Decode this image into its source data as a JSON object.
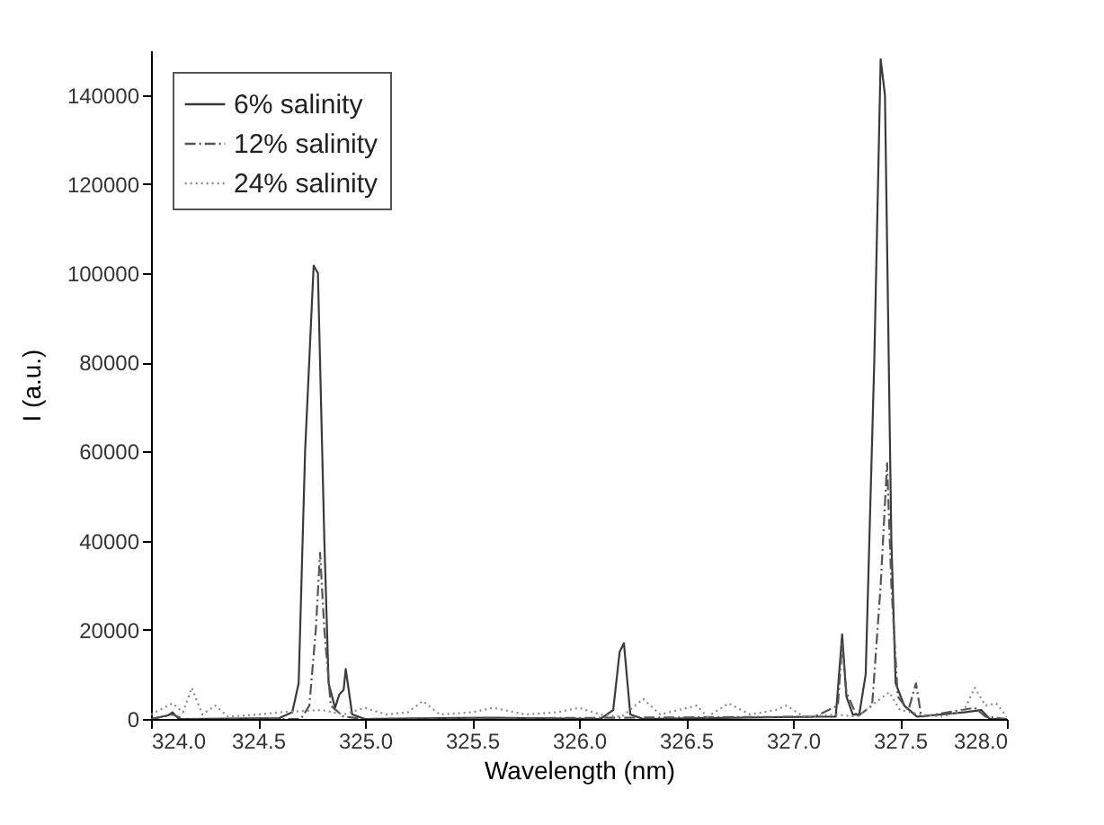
{
  "chart_data": {
    "type": "line",
    "xlabel": "Wavelength (nm)",
    "ylabel": "I (a.u.)",
    "xlim": [
      324.0,
      328.0
    ],
    "ylim": [
      0,
      150000
    ],
    "xticks": [
      {
        "value": 324,
        "label": "324.0"
      },
      {
        "value": 324.5,
        "label": "324.5"
      },
      {
        "value": 325,
        "label": "325.0"
      },
      {
        "value": 325.5,
        "label": "325.5"
      },
      {
        "value": 326,
        "label": "326.0"
      },
      {
        "value": 326.5,
        "label": "326.5"
      },
      {
        "value": 327,
        "label": "327.0"
      },
      {
        "value": 327.5,
        "label": "327.5"
      },
      {
        "value": 328,
        "label": "328.0"
      }
    ],
    "yticks": [
      0,
      20000,
      40000,
      60000,
      80000,
      100000,
      120000,
      140000
    ],
    "grid": false,
    "legend": "top left",
    "marker": "none",
    "series": [
      {
        "name": "6% salinity",
        "color": "#3a3a3a",
        "line_style": "solid",
        "x": [
          324.0,
          324.08,
          324.1,
          324.13,
          324.6,
          324.66,
          324.69,
          324.72,
          324.76,
          324.78,
          324.81,
          324.83,
          324.86,
          324.88,
          324.9,
          324.91,
          324.94,
          325.0,
          325.6,
          326.1,
          326.16,
          326.19,
          326.21,
          326.24,
          326.3,
          327.1,
          327.2,
          327.23,
          327.25,
          327.28,
          327.31,
          327.34,
          327.38,
          327.41,
          327.43,
          327.46,
          327.48,
          327.52,
          327.58,
          327.8,
          327.88,
          327.92,
          328.0
        ],
        "values": [
          0,
          800,
          1500,
          0,
          200,
          1500,
          8000,
          60000,
          101700,
          100000,
          40000,
          8000,
          2500,
          5500,
          6500,
          11200,
          1000,
          0,
          300,
          0,
          2000,
          15000,
          17000,
          1000,
          0,
          500,
          500,
          19000,
          5000,
          1000,
          1000,
          10000,
          80000,
          148000,
          140000,
          40000,
          8000,
          3000,
          500,
          1500,
          2000,
          0,
          0
        ]
      },
      {
        "name": "12% salinity",
        "color": "#555555",
        "line_style": "dashed",
        "x": [
          324.0,
          324.1,
          324.15,
          324.7,
          324.74,
          324.77,
          324.79,
          324.81,
          324.84,
          324.9,
          325.0,
          327.1,
          327.21,
          327.23,
          327.25,
          327.3,
          327.37,
          327.41,
          327.44,
          327.46,
          327.49,
          327.54,
          327.575,
          327.6,
          327.85,
          327.9,
          328.0
        ],
        "values": [
          0,
          1000,
          0,
          0,
          3000,
          20000,
          37300,
          20000,
          3000,
          500,
          0,
          500,
          3000,
          17000,
          6000,
          500,
          3000,
          30000,
          57400,
          30000,
          5000,
          2000,
          8000,
          500,
          2500,
          500,
          0
        ]
      },
      {
        "name": "24% salinity",
        "color": "#8a8a8a",
        "line_style": "dotted",
        "x": [
          324.0,
          324.1,
          324.15,
          324.19,
          324.24,
          324.3,
          324.36,
          324.5,
          324.6,
          324.8,
          324.9,
          325.0,
          325.1,
          325.2,
          325.27,
          325.35,
          325.5,
          325.6,
          325.75,
          325.9,
          326.0,
          326.1,
          326.2,
          326.3,
          326.38,
          326.55,
          326.6,
          326.7,
          326.8,
          326.92,
          326.97,
          327.05,
          327.2,
          327.3,
          327.45,
          327.5,
          327.6,
          327.7,
          327.8,
          327.85,
          327.9,
          327.95,
          328.0
        ],
        "values": [
          1000,
          3500,
          1500,
          7000,
          1000,
          3000,
          500,
          1000,
          1500,
          2000,
          1000,
          2500,
          1000,
          1500,
          4000,
          1000,
          1500,
          2500,
          1000,
          1500,
          2500,
          1000,
          500,
          4500,
          1000,
          3000,
          500,
          3500,
          1000,
          2000,
          3000,
          500,
          1000,
          500,
          6000,
          2000,
          1000,
          500,
          2000,
          7000,
          3000,
          3500,
          500
        ]
      }
    ]
  }
}
